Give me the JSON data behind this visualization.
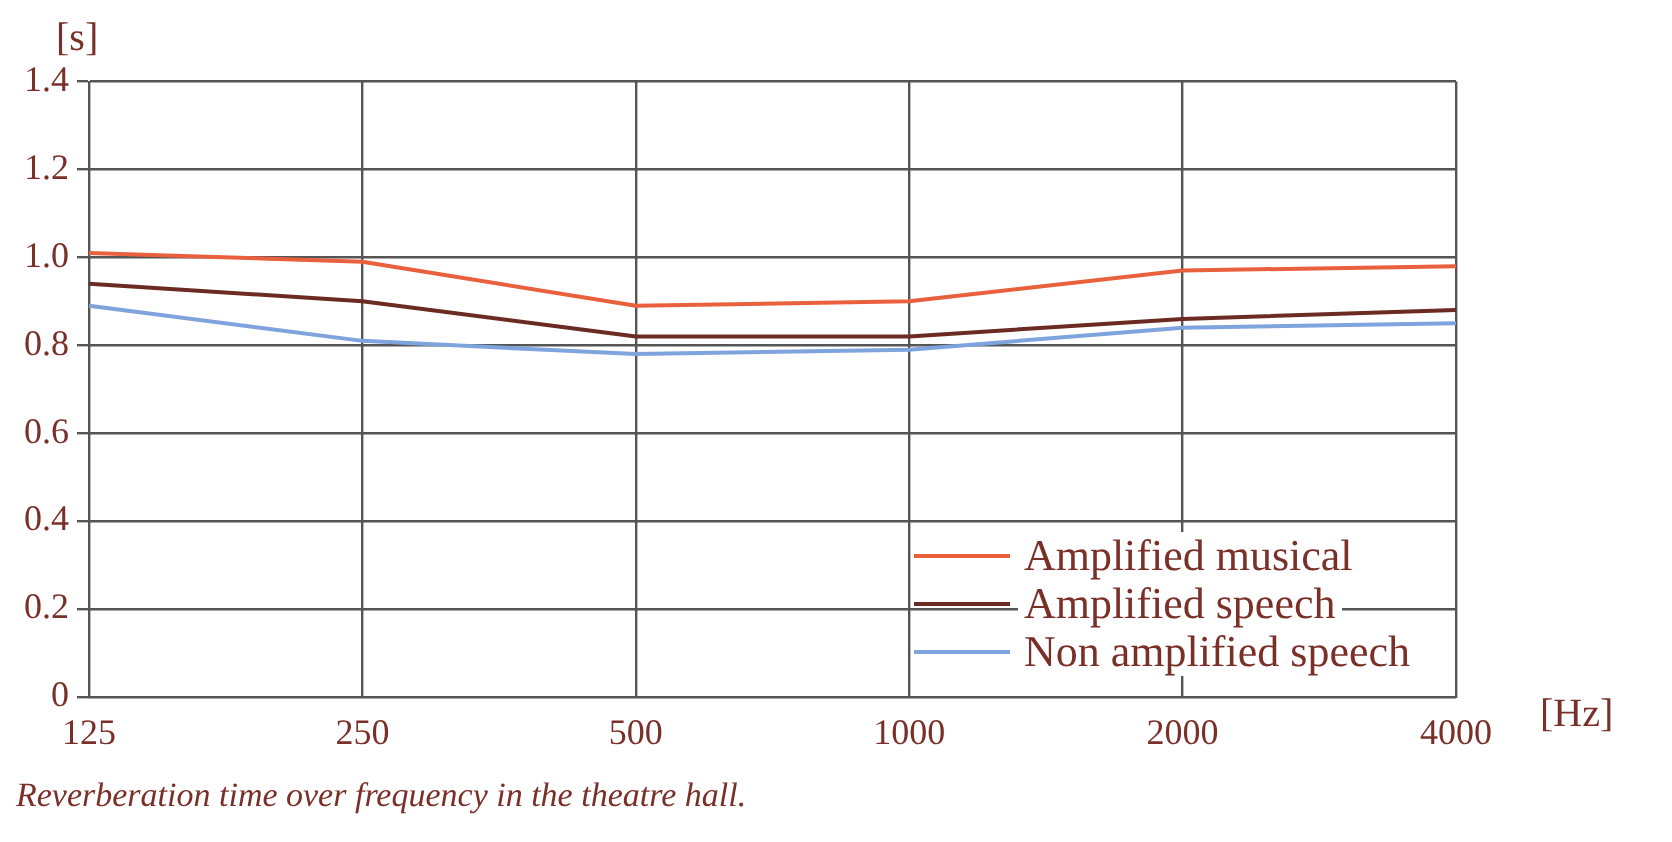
{
  "chart_data": {
    "type": "line",
    "categories": [
      "125",
      "250",
      "500",
      "1000",
      "2000",
      "4000"
    ],
    "series": [
      {
        "name": "Amplified musical",
        "color": "#e8603c",
        "values": [
          1.01,
          0.99,
          0.89,
          0.9,
          0.97,
          0.98
        ]
      },
      {
        "name": "Amplified speech",
        "color": "#6b2a22",
        "values": [
          0.94,
          0.9,
          0.82,
          0.82,
          0.86,
          0.88
        ]
      },
      {
        "name": "Non amplified speech",
        "color": "#7fa3dc",
        "values": [
          0.89,
          0.81,
          0.78,
          0.79,
          0.84,
          0.85
        ]
      }
    ],
    "xlabel": "[Hz]",
    "ylabel": "[s]",
    "ylim": [
      0,
      1.4
    ],
    "yticks": [
      0,
      0.2,
      0.4,
      0.6,
      0.8,
      {
        "value": 1.0,
        "label": "1.0"
      },
      1.2,
      1.4
    ],
    "grid": true,
    "legend": "bottom right",
    "marker": "none",
    "line_style": "solid",
    "annotations": [
      "Reverberation time over frequency in the theatre hall."
    ]
  }
}
